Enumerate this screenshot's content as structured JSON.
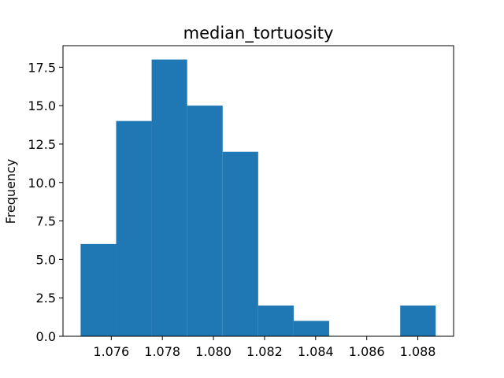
{
  "chart_data": {
    "type": "bar",
    "title": "median_tortuosity",
    "xlabel": "",
    "ylabel": "Frequency",
    "bin_edges": [
      1.0748,
      1.07619,
      1.07758,
      1.07897,
      1.08036,
      1.08175,
      1.08314,
      1.08453,
      1.08592,
      1.08731,
      1.0887
    ],
    "values": [
      6,
      14,
      18,
      15,
      12,
      2,
      1,
      0,
      0,
      2
    ],
    "xlim": [
      1.07411,
      1.0894
    ],
    "ylim": [
      0,
      18.9
    ],
    "xticks": [
      1.076,
      1.078,
      1.08,
      1.082,
      1.084,
      1.086,
      1.088
    ],
    "xtick_labels": [
      "1.076",
      "1.078",
      "1.080",
      "1.082",
      "1.084",
      "1.086",
      "1.088"
    ],
    "yticks": [
      0,
      2.5,
      5,
      7.5,
      10,
      12.5,
      15,
      17.5
    ],
    "ytick_labels": [
      "0.0",
      "2.5",
      "5.0",
      "7.5",
      "10.0",
      "12.5",
      "15.0",
      "17.5"
    ],
    "grid": false,
    "bar_color": "#1f77b4"
  }
}
